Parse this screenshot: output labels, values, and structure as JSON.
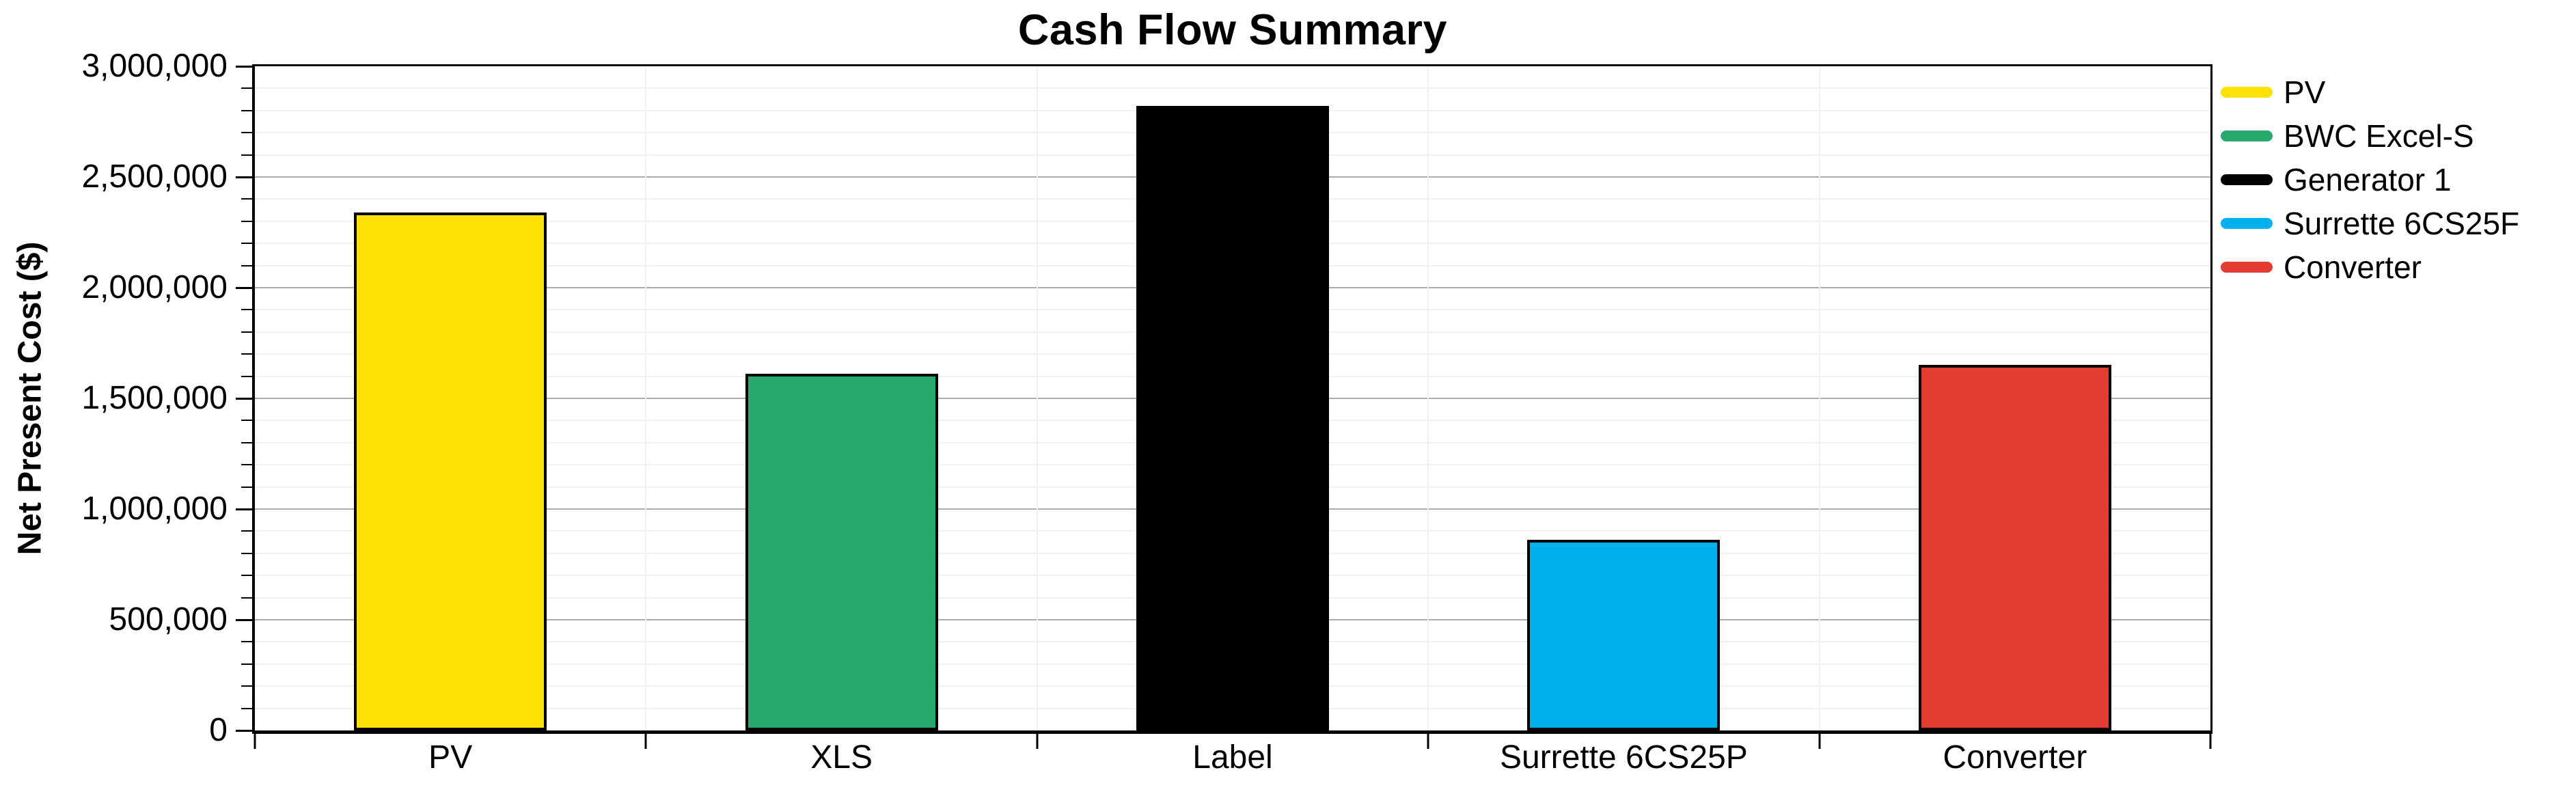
{
  "chart_data": {
    "type": "bar",
    "title": "Cash Flow Summary",
    "xlabel": "",
    "ylabel": "Net Present Cost ($)",
    "ylim": [
      0,
      3000000
    ],
    "y_major_step": 500000,
    "y_minor_step": 100000,
    "y_tick_labels": [
      "0",
      "500,000",
      "1,000,000",
      "1,500,000",
      "2,000,000",
      "2,500,000",
      "3,000,000"
    ],
    "grid": true,
    "legend_position": "right",
    "categories": [
      "PV",
      "XLS",
      "Label",
      "Surrette 6CS25P",
      "Converter"
    ],
    "series": [
      {
        "name": "PV",
        "category": "PV",
        "value": 2340000,
        "color": "#FFE205"
      },
      {
        "name": "BWC Excel-S",
        "category": "XLS",
        "value": 1610000,
        "color": "#27A86D"
      },
      {
        "name": "Generator 1",
        "category": "Label",
        "value": 2820000,
        "color": "#000000"
      },
      {
        "name": "Surrette 6CS25F",
        "category": "Surrette 6CS25P",
        "value": 860000,
        "color": "#00B1F0"
      },
      {
        "name": "Converter",
        "category": "Converter",
        "value": 1650000,
        "color": "#E23D30"
      }
    ]
  },
  "legend": {
    "entries": [
      {
        "label": "PV",
        "color": "#FFE205"
      },
      {
        "label": "BWC Excel-S",
        "color": "#27A86D"
      },
      {
        "label": "Generator 1",
        "color": "#000000"
      },
      {
        "label": "Surrette 6CS25F",
        "color": "#00B1F0"
      },
      {
        "label": "Converter",
        "color": "#E23D30"
      }
    ]
  }
}
